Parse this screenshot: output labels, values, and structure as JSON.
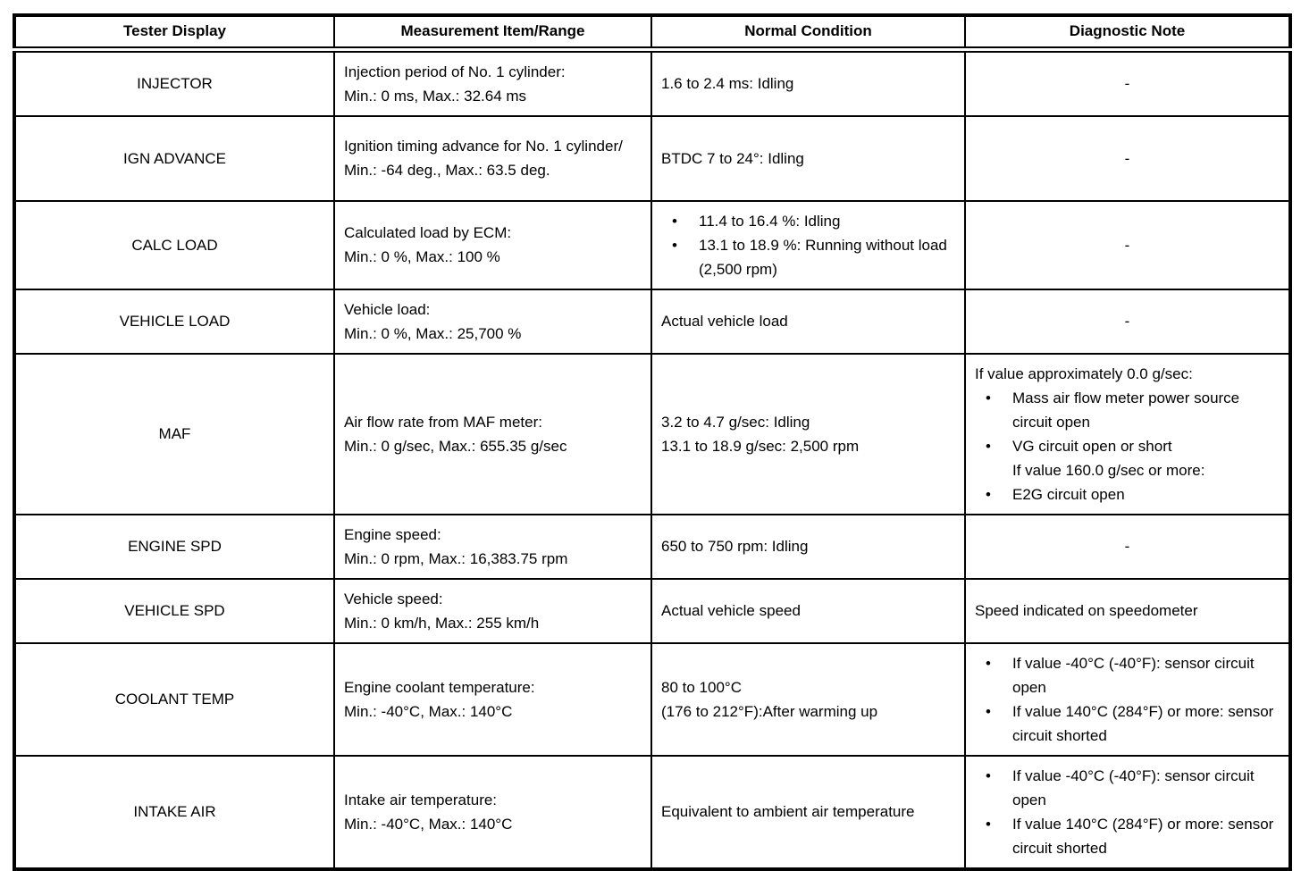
{
  "table": {
    "columns": [
      "Tester Display",
      "Measurement Item/Range",
      "Normal Condition",
      "Diagnostic Note"
    ],
    "rows": [
      {
        "tester_display": "INJECTOR",
        "measurement": [
          {
            "text": "Injection period of No. 1 cylinder:"
          },
          {
            "text": "Min.: 0 ms, Max.: 32.64 ms"
          }
        ],
        "normal": [
          {
            "text": "1.6 to 2.4 ms: Idling"
          }
        ],
        "note": [
          {
            "text": "-",
            "center": true
          }
        ]
      },
      {
        "tester_display": "IGN ADVANCE",
        "measurement": [
          {
            "text": "Ignition timing advance for No. 1 cylinder/"
          },
          {
            "text": "Min.: -64 deg., Max.: 63.5 deg."
          }
        ],
        "normal": [
          {
            "text": "BTDC 7 to 24°: Idling"
          }
        ],
        "note": [
          {
            "text": "-",
            "center": true
          }
        ]
      },
      {
        "tester_display": "CALC LOAD",
        "measurement": [
          {
            "text": "Calculated load by ECM:"
          },
          {
            "text": "Min.: 0 %, Max.: 100 %"
          }
        ],
        "normal": [
          {
            "text": "11.4 to 16.4 %: Idling",
            "bullet": true
          },
          {
            "text": "13.1 to 18.9 %: Running without load (2,500 rpm)",
            "bullet": true
          }
        ],
        "note": [
          {
            "text": "-",
            "center": true
          }
        ]
      },
      {
        "tester_display": "VEHICLE LOAD",
        "measurement": [
          {
            "text": "Vehicle load:"
          },
          {
            "text": "Min.: 0 %, Max.: 25,700 %"
          }
        ],
        "normal": [
          {
            "text": "Actual vehicle load"
          }
        ],
        "note": [
          {
            "text": "-",
            "center": true
          }
        ]
      },
      {
        "tester_display": "MAF",
        "measurement": [
          {
            "text": "Air flow rate from MAF meter:"
          },
          {
            "text": "Min.: 0 g/sec, Max.: 655.35 g/sec"
          }
        ],
        "normal": [
          {
            "text": "3.2 to 4.7 g/sec: Idling"
          },
          {
            "text": "13.1 to 18.9 g/sec: 2,500 rpm"
          }
        ],
        "note": [
          {
            "text": "If value approximately 0.0 g/sec:"
          },
          {
            "text": "Mass air flow meter power source circuit open",
            "bullet": true
          },
          {
            "text": "VG circuit open or short",
            "bullet": true
          },
          {
            "text": "If value 160.0 g/sec or more:",
            "indent": true
          },
          {
            "text": "E2G circuit open",
            "bullet": true
          }
        ]
      },
      {
        "tester_display": "ENGINE SPD",
        "measurement": [
          {
            "text": "Engine speed:"
          },
          {
            "text": "Min.: 0 rpm, Max.: 16,383.75 rpm"
          }
        ],
        "normal": [
          {
            "text": "650 to 750 rpm: Idling"
          }
        ],
        "note": [
          {
            "text": "-",
            "center": true
          }
        ]
      },
      {
        "tester_display": "VEHICLE SPD",
        "measurement": [
          {
            "text": "Vehicle speed:"
          },
          {
            "text": "Min.: 0 km/h, Max.: 255 km/h"
          }
        ],
        "normal": [
          {
            "text": "Actual vehicle speed"
          }
        ],
        "note": [
          {
            "text": "Speed indicated on speedometer"
          }
        ]
      },
      {
        "tester_display": "COOLANT TEMP",
        "measurement": [
          {
            "text": "Engine coolant temperature:"
          },
          {
            "text": "Min.: -40°C, Max.: 140°C"
          }
        ],
        "normal": [
          {
            "text": "80 to 100°C"
          },
          {
            "text": "(176 to 212°F):After warming up"
          }
        ],
        "note": [
          {
            "text": "If value -40°C (-40°F): sensor circuit open",
            "bullet": true
          },
          {
            "text": "If value 140°C (284°F) or more: sensor circuit shorted",
            "bullet": true
          }
        ]
      },
      {
        "tester_display": "INTAKE AIR",
        "measurement": [
          {
            "text": "Intake air temperature:"
          },
          {
            "text": "Min.: -40°C, Max.: 140°C"
          }
        ],
        "normal": [
          {
            "text": "Equivalent to ambient air temperature"
          }
        ],
        "note": [
          {
            "text": "If value -40°C (-40°F): sensor circuit open",
            "bullet": true
          },
          {
            "text": "If value 140°C (284°F) or more: sensor circuit shorted",
            "bullet": true
          }
        ]
      }
    ]
  }
}
